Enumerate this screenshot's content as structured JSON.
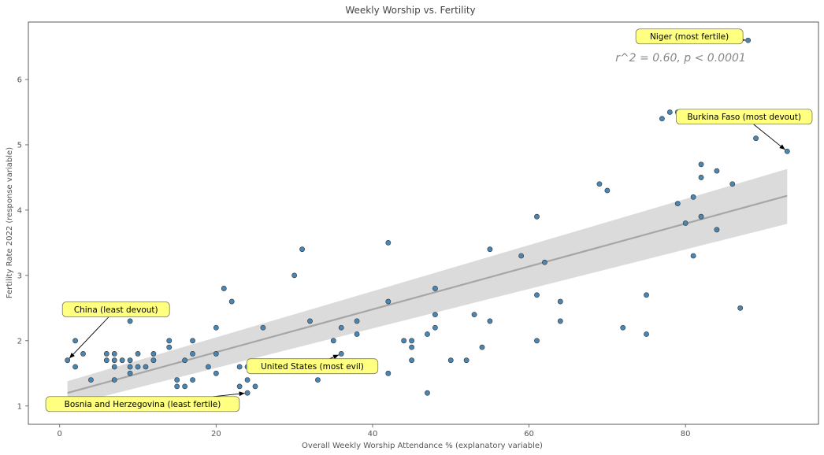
{
  "chart_data": {
    "type": "scatter",
    "title": "Weekly Worship vs. Fertility",
    "xlabel": "Overall Weekly Worship Attendance % (explanatory variable)",
    "ylabel": "Fertility Rate 2022 (response variable)",
    "xlim": [
      -4,
      97
    ],
    "ylim": [
      0.72,
      6.88
    ],
    "xticks": [
      0,
      20,
      40,
      60,
      80
    ],
    "yticks": [
      1,
      2,
      3,
      4,
      5,
      6
    ],
    "stat_annotation": "r^2 = 0.60,  p < 0.0001",
    "regression": {
      "x_start": 1,
      "y_start": 1.2,
      "x_end": 93,
      "y_end": 4.22,
      "ci_start": [
        1.01,
        1.38
      ],
      "ci_end": [
        3.79,
        4.63
      ]
    },
    "points": [
      {
        "x": 1,
        "y": 1.7
      },
      {
        "x": 2,
        "y": 2.0
      },
      {
        "x": 2,
        "y": 1.6
      },
      {
        "x": 3,
        "y": 1.8
      },
      {
        "x": 4,
        "y": 1.4
      },
      {
        "x": 6,
        "y": 1.8
      },
      {
        "x": 6,
        "y": 1.7
      },
      {
        "x": 7,
        "y": 1.8
      },
      {
        "x": 7,
        "y": 1.7
      },
      {
        "x": 7,
        "y": 1.6
      },
      {
        "x": 7,
        "y": 1.4
      },
      {
        "x": 8,
        "y": 1.7
      },
      {
        "x": 9,
        "y": 2.3
      },
      {
        "x": 9,
        "y": 1.7
      },
      {
        "x": 9,
        "y": 1.6
      },
      {
        "x": 9,
        "y": 1.5
      },
      {
        "x": 10,
        "y": 1.8
      },
      {
        "x": 10,
        "y": 1.6
      },
      {
        "x": 11,
        "y": 1.6
      },
      {
        "x": 12,
        "y": 1.8
      },
      {
        "x": 12,
        "y": 1.7
      },
      {
        "x": 14,
        "y": 2.0
      },
      {
        "x": 14,
        "y": 1.9
      },
      {
        "x": 15,
        "y": 1.4
      },
      {
        "x": 15,
        "y": 1.3
      },
      {
        "x": 16,
        "y": 1.7
      },
      {
        "x": 16,
        "y": 1.3
      },
      {
        "x": 17,
        "y": 2.0
      },
      {
        "x": 17,
        "y": 1.8
      },
      {
        "x": 17,
        "y": 1.4
      },
      {
        "x": 19,
        "y": 1.6
      },
      {
        "x": 20,
        "y": 2.2
      },
      {
        "x": 20,
        "y": 1.8
      },
      {
        "x": 20,
        "y": 1.5
      },
      {
        "x": 21,
        "y": 2.8
      },
      {
        "x": 22,
        "y": 2.6
      },
      {
        "x": 23,
        "y": 1.6
      },
      {
        "x": 23,
        "y": 1.3
      },
      {
        "x": 24,
        "y": 1.6
      },
      {
        "x": 24,
        "y": 1.4
      },
      {
        "x": 24,
        "y": 1.2
      },
      {
        "x": 25,
        "y": 1.3
      },
      {
        "x": 26,
        "y": 2.2
      },
      {
        "x": 30,
        "y": 3.0
      },
      {
        "x": 31,
        "y": 3.4
      },
      {
        "x": 32,
        "y": 2.3
      },
      {
        "x": 33,
        "y": 1.4
      },
      {
        "x": 35,
        "y": 2.0
      },
      {
        "x": 36,
        "y": 2.2
      },
      {
        "x": 36,
        "y": 1.8
      },
      {
        "x": 38,
        "y": 2.3
      },
      {
        "x": 38,
        "y": 2.1
      },
      {
        "x": 42,
        "y": 3.5
      },
      {
        "x": 42,
        "y": 2.6
      },
      {
        "x": 42,
        "y": 1.5
      },
      {
        "x": 44,
        "y": 2.0
      },
      {
        "x": 45,
        "y": 2.0
      },
      {
        "x": 45,
        "y": 1.9
      },
      {
        "x": 45,
        "y": 1.7
      },
      {
        "x": 47,
        "y": 2.1
      },
      {
        "x": 47,
        "y": 1.2
      },
      {
        "x": 48,
        "y": 2.8
      },
      {
        "x": 48,
        "y": 2.4
      },
      {
        "x": 48,
        "y": 2.2
      },
      {
        "x": 50,
        "y": 1.7
      },
      {
        "x": 52,
        "y": 1.7
      },
      {
        "x": 53,
        "y": 2.4
      },
      {
        "x": 54,
        "y": 1.9
      },
      {
        "x": 55,
        "y": 3.4
      },
      {
        "x": 55,
        "y": 2.3
      },
      {
        "x": 59,
        "y": 3.3
      },
      {
        "x": 61,
        "y": 3.9
      },
      {
        "x": 61,
        "y": 2.7
      },
      {
        "x": 61,
        "y": 2.0
      },
      {
        "x": 62,
        "y": 3.2
      },
      {
        "x": 64,
        "y": 2.6
      },
      {
        "x": 64,
        "y": 2.3
      },
      {
        "x": 69,
        "y": 4.4
      },
      {
        "x": 70,
        "y": 4.3
      },
      {
        "x": 72,
        "y": 2.2
      },
      {
        "x": 75,
        "y": 2.7
      },
      {
        "x": 75,
        "y": 2.1
      },
      {
        "x": 77,
        "y": 5.4
      },
      {
        "x": 78,
        "y": 5.5
      },
      {
        "x": 79,
        "y": 5.5
      },
      {
        "x": 79,
        "y": 4.1
      },
      {
        "x": 80,
        "y": 3.8
      },
      {
        "x": 81,
        "y": 4.2
      },
      {
        "x": 81,
        "y": 3.3
      },
      {
        "x": 82,
        "y": 4.7
      },
      {
        "x": 82,
        "y": 4.5
      },
      {
        "x": 82,
        "y": 3.9
      },
      {
        "x": 84,
        "y": 4.6
      },
      {
        "x": 84,
        "y": 3.7
      },
      {
        "x": 86,
        "y": 4.4
      },
      {
        "x": 87,
        "y": 2.5
      },
      {
        "x": 88,
        "y": 6.6
      },
      {
        "x": 89,
        "y": 5.1
      },
      {
        "x": 93,
        "y": 4.9
      }
    ],
    "annotations": [
      {
        "text": "Niger (most fertile)",
        "point": [
          88,
          6.6
        ],
        "label": [
          80.5,
          6.66
        ]
      },
      {
        "text": "Burkina Faso (most devout)",
        "point": [
          93,
          4.9
        ],
        "label": [
          87.5,
          5.43
        ]
      },
      {
        "text": "China (least devout)",
        "point": [
          1,
          1.7
        ],
        "label": [
          7.2,
          2.48
        ]
      },
      {
        "text": "United States (most evil)",
        "point": [
          36,
          1.8
        ],
        "label": [
          32.3,
          1.61
        ]
      },
      {
        "text": "Bosnia and Herzegovina (least fertile)",
        "point": [
          24,
          1.2
        ],
        "label": [
          10.6,
          1.03
        ]
      }
    ],
    "colors": {
      "point_fill": "#4a86b4",
      "point_edge": "#333333",
      "regression_line": "#a6a6a6",
      "confidence_band": "#d9d9d9",
      "callout_fill": "#ffff80",
      "callout_edge": "#7a7a5a"
    }
  }
}
